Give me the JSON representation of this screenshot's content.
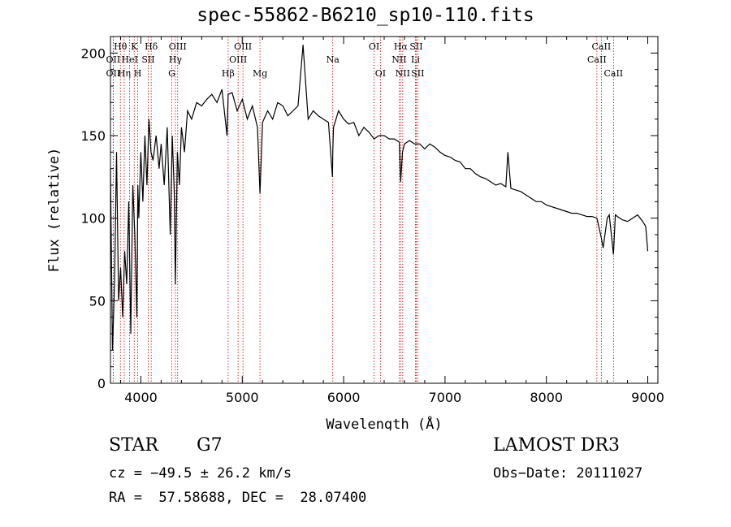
{
  "chart_data": {
    "type": "line",
    "title": "spec-55862-B6210_sp10-110.fits",
    "xlabel": "Wavelength (Å)",
    "ylabel": "Flux (relative)",
    "xlim": [
      3700,
      9100
    ],
    "ylim": [
      0,
      210
    ],
    "xticks": [
      4000,
      5000,
      6000,
      7000,
      8000,
      9000
    ],
    "yticks": [
      0,
      50,
      100,
      150,
      200
    ],
    "grid": false,
    "series": [
      {
        "name": "spectrum",
        "x": [
          3700,
          3720,
          3740,
          3760,
          3780,
          3800,
          3820,
          3840,
          3860,
          3880,
          3900,
          3920,
          3940,
          3960,
          3970,
          3980,
          4000,
          4020,
          4040,
          4060,
          4080,
          4100,
          4120,
          4150,
          4180,
          4200,
          4230,
          4260,
          4290,
          4310,
          4330,
          4340,
          4360,
          4380,
          4400,
          4430,
          4460,
          4500,
          4550,
          4600,
          4650,
          4700,
          4750,
          4800,
          4850,
          4861,
          4900,
          4950,
          5000,
          5050,
          5100,
          5150,
          5175,
          5200,
          5250,
          5300,
          5350,
          5400,
          5450,
          5500,
          5550,
          5600,
          5650,
          5700,
          5750,
          5800,
          5850,
          5890,
          5893,
          5900,
          5950,
          6000,
          6050,
          6100,
          6150,
          6200,
          6250,
          6300,
          6350,
          6400,
          6450,
          6500,
          6550,
          6563,
          6580,
          6600,
          6650,
          6700,
          6750,
          6800,
          6850,
          6900,
          6950,
          7000,
          7050,
          7100,
          7150,
          7200,
          7250,
          7300,
          7350,
          7400,
          7450,
          7500,
          7550,
          7600,
          7620,
          7650,
          7700,
          7750,
          7800,
          7850,
          7900,
          7950,
          8000,
          8050,
          8100,
          8150,
          8200,
          8250,
          8300,
          8350,
          8400,
          8450,
          8498,
          8542,
          8560,
          8600,
          8620,
          8662,
          8680,
          8700,
          8750,
          8800,
          8850,
          8900,
          8950,
          8980,
          9000
        ],
        "values": [
          130,
          20,
          60,
          140,
          50,
          70,
          40,
          80,
          60,
          110,
          30,
          120,
          90,
          40,
          120,
          100,
          140,
          110,
          150,
          120,
          160,
          140,
          135,
          150,
          130,
          145,
          120,
          155,
          90,
          150,
          115,
          60,
          140,
          120,
          155,
          140,
          165,
          160,
          170,
          168,
          172,
          175,
          170,
          178,
          150,
          175,
          176,
          165,
          172,
          160,
          168,
          155,
          115,
          158,
          165,
          160,
          170,
          168,
          162,
          165,
          168,
          205,
          160,
          165,
          162,
          160,
          158,
          125,
          140,
          155,
          165,
          160,
          157,
          158,
          150,
          155,
          152,
          148,
          150,
          150,
          148,
          148,
          146,
          122,
          140,
          145,
          147,
          145,
          145,
          142,
          145,
          143,
          140,
          138,
          137,
          135,
          134,
          130,
          130,
          127,
          125,
          124,
          122,
          120,
          121,
          119,
          140,
          118,
          117,
          116,
          114,
          112,
          110,
          110,
          108,
          107,
          106,
          105,
          104,
          103,
          103,
          102,
          101,
          101,
          100,
          88,
          82,
          100,
          102,
          78,
          102,
          101,
          99,
          98,
          100,
          102,
          98,
          95,
          80
        ]
      }
    ],
    "line_markers": [
      {
        "label": "Hθ",
        "wavelength": 3798,
        "row": 1
      },
      {
        "label": "OII",
        "wavelength": 3727,
        "row": 2
      },
      {
        "label": "Hη",
        "wavelength": 3835,
        "row": 3
      },
      {
        "label": "OII",
        "wavelength": 3727,
        "row": 3
      },
      {
        "label": "HeI",
        "wavelength": 3889,
        "row": 2
      },
      {
        "label": "K",
        "wavelength": 3934,
        "row": 1
      },
      {
        "label": "H",
        "wavelength": 3969,
        "row": 3
      },
      {
        "label": "SII",
        "wavelength": 4072,
        "row": 2
      },
      {
        "label": "Hδ",
        "wavelength": 4102,
        "row": 1
      },
      {
        "label": "OIII",
        "wavelength": 4363,
        "row": 1
      },
      {
        "label": "Hγ",
        "wavelength": 4340,
        "row": 2
      },
      {
        "label": "G",
        "wavelength": 4305,
        "row": 3
      },
      {
        "label": "Hβ",
        "wavelength": 4861,
        "row": 3
      },
      {
        "label": "OIII",
        "wavelength": 5007,
        "row": 1
      },
      {
        "label": "OIII",
        "wavelength": 4959,
        "row": 2
      },
      {
        "label": "Mg",
        "wavelength": 5175,
        "row": 3
      },
      {
        "label": "Na",
        "wavelength": 5893,
        "row": 2
      },
      {
        "label": "OI",
        "wavelength": 6300,
        "row": 1
      },
      {
        "label": "OI",
        "wavelength": 6363,
        "row": 3
      },
      {
        "label": "Hα",
        "wavelength": 6563,
        "row": 1
      },
      {
        "label": "NII",
        "wavelength": 6548,
        "row": 2
      },
      {
        "label": "NII",
        "wavelength": 6583,
        "row": 3
      },
      {
        "label": "SII",
        "wavelength": 6716,
        "row": 1
      },
      {
        "label": "Li",
        "wavelength": 6708,
        "row": 2
      },
      {
        "label": "SII",
        "wavelength": 6731,
        "row": 3
      },
      {
        "label": "CaII",
        "wavelength": 8542,
        "row": 1
      },
      {
        "label": "CaII",
        "wavelength": 8498,
        "row": 2
      },
      {
        "label": "CaII",
        "wavelength": 8662,
        "row": 3
      }
    ]
  },
  "info": {
    "object_type": "STAR",
    "spectral_class": "G7",
    "survey": "LAMOST DR3",
    "cz": "cz = −49.5 ± 26.2 km/s",
    "obs_date": "Obs−Date: 20111027",
    "radec": "RA =  57.58688, DEC =  28.07400"
  },
  "colors": {
    "spectrum": "#000000",
    "marker_line": "#c00000",
    "axes": "#000000"
  }
}
